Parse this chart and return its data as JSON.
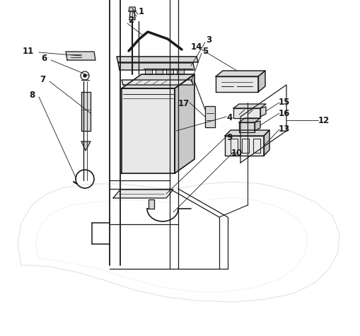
{
  "bg_color": "#ffffff",
  "lc": "#1a1a1a",
  "gray1": "#e8e8e8",
  "gray2": "#d8d8d8",
  "gray3": "#c8c8c8",
  "gray4": "#b8b8b8",
  "dashed": "#aaaaaa",
  "fig_width": 5.1,
  "fig_height": 4.75,
  "dpi": 100
}
